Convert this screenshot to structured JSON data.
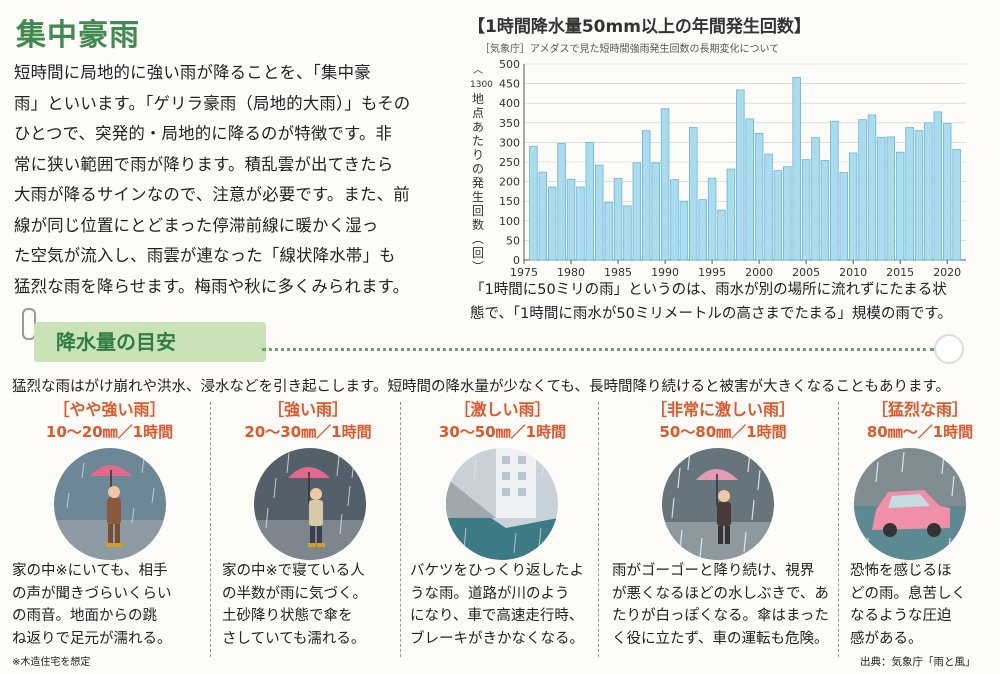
{
  "title": "集中豪雨",
  "intro": [
    "短時間に局地的に強い雨が降ることを、「集中豪",
    "雨」といいます。「ゲリラ豪雨（局地的大雨）」もその",
    "ひとつで、突発的・局地的に降るのが特徴です。非",
    "常に狭い範囲で雨が降ります。積乱雲が出てきたら",
    "大雨が降るサインなので、注意が必要です。また、前",
    "線が同じ位置にとどまった停滞前線に暖かく湿っ",
    "た空気が流入し、雨雲が連なった「線状降水帯」も",
    "猛烈な雨を降らせます。梅雨や秋に多くみられます。"
  ],
  "chart_title": "【1時間降水量50mm以上の年間発生回数】",
  "chart_source": "［気象庁］アメダスで見た短時間強雨発生回数の長期変化について",
  "chart_ylabel": "︿1300地点あたりの発生回数︵回︶",
  "chart_ytop": "1300",
  "chart_data": {
    "type": "bar",
    "years": [
      1976,
      1977,
      1978,
      1979,
      1980,
      1981,
      1982,
      1983,
      1984,
      1985,
      1986,
      1987,
      1988,
      1989,
      1990,
      1991,
      1992,
      1993,
      1994,
      1995,
      1996,
      1997,
      1998,
      1999,
      2000,
      2001,
      2002,
      2003,
      2004,
      2005,
      2006,
      2007,
      2008,
      2009,
      2010,
      2011,
      2012,
      2013,
      2014,
      2015,
      2016,
      2017,
      2018,
      2019,
      2020,
      2021
    ],
    "values": [
      290,
      224,
      186,
      297,
      206,
      186,
      300,
      242,
      147,
      208,
      138,
      248,
      330,
      248,
      386,
      205,
      150,
      338,
      154,
      209,
      127,
      232,
      434,
      360,
      323,
      270,
      228,
      238,
      466,
      256,
      312,
      254,
      354,
      223,
      273,
      358,
      370,
      313,
      314,
      275,
      338,
      330,
      350,
      378,
      348,
      282
    ],
    "xticks": [
      "1975",
      "1980",
      "1985",
      "1990",
      "1995",
      "2000",
      "2005",
      "2010",
      "2015",
      "2020"
    ],
    "yticks": [
      "0",
      "50",
      "100",
      "150",
      "200",
      "250",
      "300",
      "350",
      "400",
      "450",
      "500"
    ],
    "ylim": [
      0,
      500
    ],
    "xlim": [
      1975,
      2022
    ],
    "bar_color": "#a9dcef",
    "bar_border": "#6fb6d4"
  },
  "note": [
    "「1時間に50ミリの雨」というのは、雨水が別の場所に流れずにたまる状",
    "態で、「1時間に雨水が50ミリメートルの高さまでたまる」規模の雨です。"
  ],
  "guide_title": "降水量の目安",
  "guide_desc": "猛烈な雨はがけ崩れや洪水、浸水などを引き起こします。短時間の降水量が少なくても、長時間降り続けると被害が大きくなることもあります。",
  "panels": [
    {
      "head": "［やや強い雨］",
      "range": "10〜20㎜／1時間",
      "desc": [
        "家の中※にいても、相手",
        "の声が聞きづらいくらい",
        "の雨音。地面からの跳",
        "ね返りで足元が濡れる。"
      ]
    },
    {
      "head": "［強い雨］",
      "range": "20〜30㎜／1時間",
      "desc": [
        "家の中※で寝ている人",
        "の半数が雨に気づく。",
        "土砂降り状態で傘を",
        "さしていても濡れる。"
      ]
    },
    {
      "head": "［激しい雨］",
      "range": "30〜50㎜／1時間",
      "desc": [
        "バケツをひっくり返したよ",
        "うな雨。道路が川のよう",
        "になり、車で高速走行時、",
        "ブレーキがきかなくなる。"
      ]
    },
    {
      "head": "［非常に激しい雨］",
      "range": "50〜80㎜／1時間",
      "desc": [
        "雨がゴーゴーと降り続け、視界",
        "が悪くなるほどの水しぶきで、あ",
        "たりが白っぽくなる。傘はまった",
        "く役に立たず、車の運転も危険。"
      ]
    },
    {
      "head": "［猛烈な雨］",
      "range": "80㎜〜／1時間",
      "desc": [
        "恐怖を感じるほ",
        "どの雨。息苦しく",
        "なるような圧迫",
        "感がある。"
      ]
    }
  ],
  "footnote": "※木造住宅を想定",
  "credit": "出典：気象庁「雨と風」",
  "colors": {
    "accent_green": "#3f8a4e",
    "accent_orange": "#e0572a",
    "guide_bg": "#c9e3b6"
  }
}
